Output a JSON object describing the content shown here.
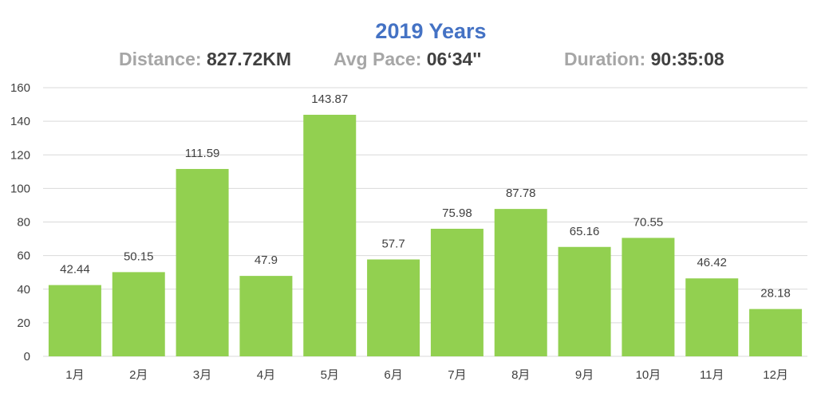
{
  "header": {
    "title": "2019 Years",
    "distance_label": "Distance:",
    "distance_value": "827.72KM",
    "pace_label": "Avg Pace:",
    "pace_value": "06‘34''",
    "duration_label": "Duration:",
    "duration_value": "90:35:08"
  },
  "chart_data": {
    "type": "bar",
    "title": "2019 Years",
    "categories": [
      "1月",
      "2月",
      "3月",
      "4月",
      "5月",
      "6月",
      "7月",
      "8月",
      "9月",
      "10月",
      "11月",
      "12月"
    ],
    "values": [
      42.44,
      50.15,
      111.59,
      47.9,
      143.87,
      57.7,
      75.98,
      87.78,
      65.16,
      70.55,
      46.42,
      28.18
    ],
    "value_labels": [
      "42.44",
      "50.15",
      "111.59",
      "47.9",
      "143.87",
      "57.7",
      "75.98",
      "87.78",
      "65.16",
      "70.55",
      "46.42",
      "28.18"
    ],
    "y_ticks": [
      "0",
      "20",
      "40",
      "60",
      "80",
      "100",
      "120",
      "140",
      "160"
    ],
    "ylim": [
      0,
      160
    ],
    "grid": true,
    "legend": "none",
    "bar_color": "#92D050",
    "grid_color": "#D9D9D9"
  }
}
